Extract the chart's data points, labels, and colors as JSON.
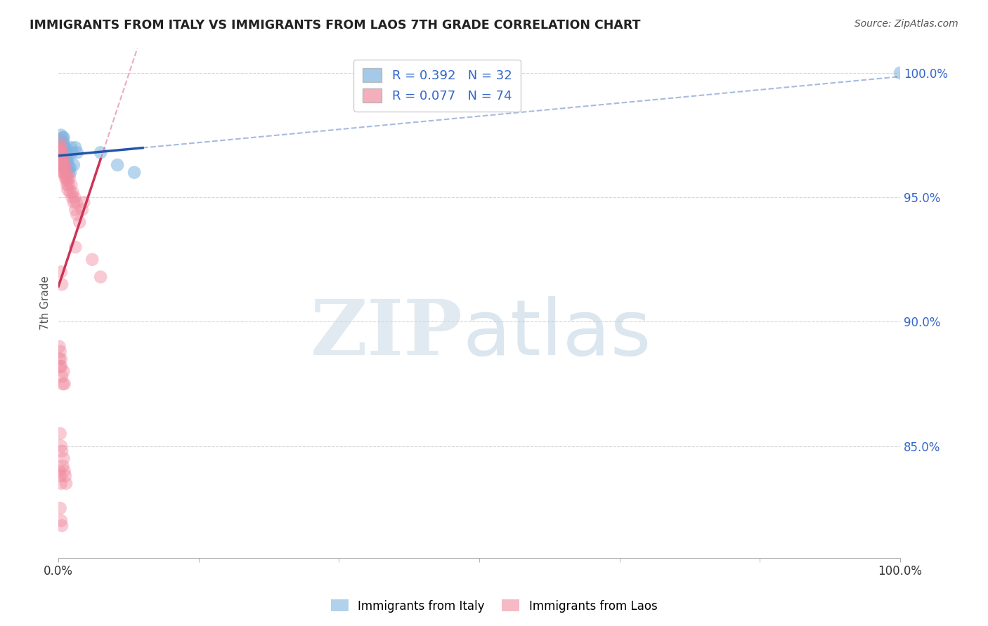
{
  "title": "IMMIGRANTS FROM ITALY VS IMMIGRANTS FROM LAOS 7TH GRADE CORRELATION CHART",
  "source": "Source: ZipAtlas.com",
  "ylabel": "7th Grade",
  "italy_R": 0.392,
  "italy_N": 32,
  "laos_R": 0.077,
  "laos_N": 74,
  "italy_color": "#7EB3E0",
  "laos_color": "#F08CA0",
  "trend_italy_color": "#2255AA",
  "trend_laos_color": "#CC3355",
  "background_color": "#ffffff",
  "grid_color": "#cccccc",
  "ytick_color": "#3366CC",
  "italy_points_x": [
    0.2,
    0.3,
    0.4,
    0.5,
    0.5,
    0.6,
    0.6,
    0.7,
    0.7,
    0.8,
    0.8,
    0.9,
    1.0,
    1.1,
    1.2,
    1.4,
    1.5,
    1.6,
    1.8,
    2.0,
    2.2,
    0.5,
    0.6,
    0.8,
    0.9,
    1.0,
    1.2,
    1.4,
    5.0,
    7.0,
    9.0,
    100.0
  ],
  "italy_points_y": [
    97.3,
    97.5,
    97.2,
    96.9,
    97.0,
    97.4,
    96.6,
    96.8,
    97.0,
    96.5,
    96.3,
    96.8,
    96.2,
    96.5,
    96.0,
    96.2,
    97.0,
    96.8,
    96.3,
    97.0,
    96.8,
    97.4,
    97.2,
    97.0,
    96.7,
    96.5,
    96.2,
    96.0,
    96.8,
    96.3,
    96.0,
    100.0
  ],
  "laos_points_x": [
    0.1,
    0.1,
    0.1,
    0.2,
    0.2,
    0.2,
    0.2,
    0.3,
    0.3,
    0.3,
    0.3,
    0.4,
    0.4,
    0.4,
    0.4,
    0.5,
    0.5,
    0.5,
    0.6,
    0.6,
    0.6,
    0.7,
    0.7,
    0.8,
    0.8,
    0.9,
    0.9,
    1.0,
    1.0,
    1.1,
    1.1,
    1.2,
    1.3,
    1.4,
    1.5,
    1.6,
    1.7,
    1.8,
    1.9,
    2.0,
    2.1,
    2.2,
    2.5,
    2.8,
    3.0,
    0.1,
    0.1,
    0.2,
    0.2,
    0.3,
    0.3,
    0.4,
    0.5,
    0.6,
    0.7,
    0.2,
    0.3,
    0.4,
    0.5,
    0.6,
    0.7,
    0.8,
    0.9,
    0.3,
    0.4,
    2.0,
    4.0,
    5.0,
    0.1,
    0.2,
    0.3,
    0.2,
    0.3,
    0.4
  ],
  "laos_points_y": [
    97.0,
    96.8,
    96.7,
    97.2,
    96.9,
    96.8,
    96.6,
    97.0,
    96.8,
    96.7,
    96.5,
    96.8,
    96.5,
    96.3,
    96.2,
    96.6,
    96.3,
    96.0,
    96.5,
    96.2,
    96.0,
    96.3,
    96.0,
    96.2,
    95.8,
    96.0,
    95.7,
    95.8,
    95.5,
    95.7,
    95.3,
    95.5,
    95.8,
    95.2,
    95.5,
    95.0,
    95.2,
    94.8,
    95.0,
    94.5,
    94.8,
    94.3,
    94.0,
    94.5,
    94.8,
    89.0,
    88.5,
    88.8,
    88.2,
    88.5,
    88.2,
    87.8,
    87.5,
    88.0,
    87.5,
    85.5,
    85.0,
    84.8,
    84.2,
    84.5,
    84.0,
    83.8,
    83.5,
    92.0,
    91.5,
    93.0,
    92.5,
    91.8,
    84.0,
    83.8,
    83.5,
    82.5,
    82.0,
    81.8
  ],
  "xlim": [
    0.0,
    100.0
  ],
  "ylim": [
    80.5,
    101.0
  ],
  "yticks": [
    85.0,
    90.0,
    95.0,
    100.0
  ],
  "ytick_labels": [
    "85.0%",
    "90.0%",
    "95.0%",
    "100.0%"
  ]
}
